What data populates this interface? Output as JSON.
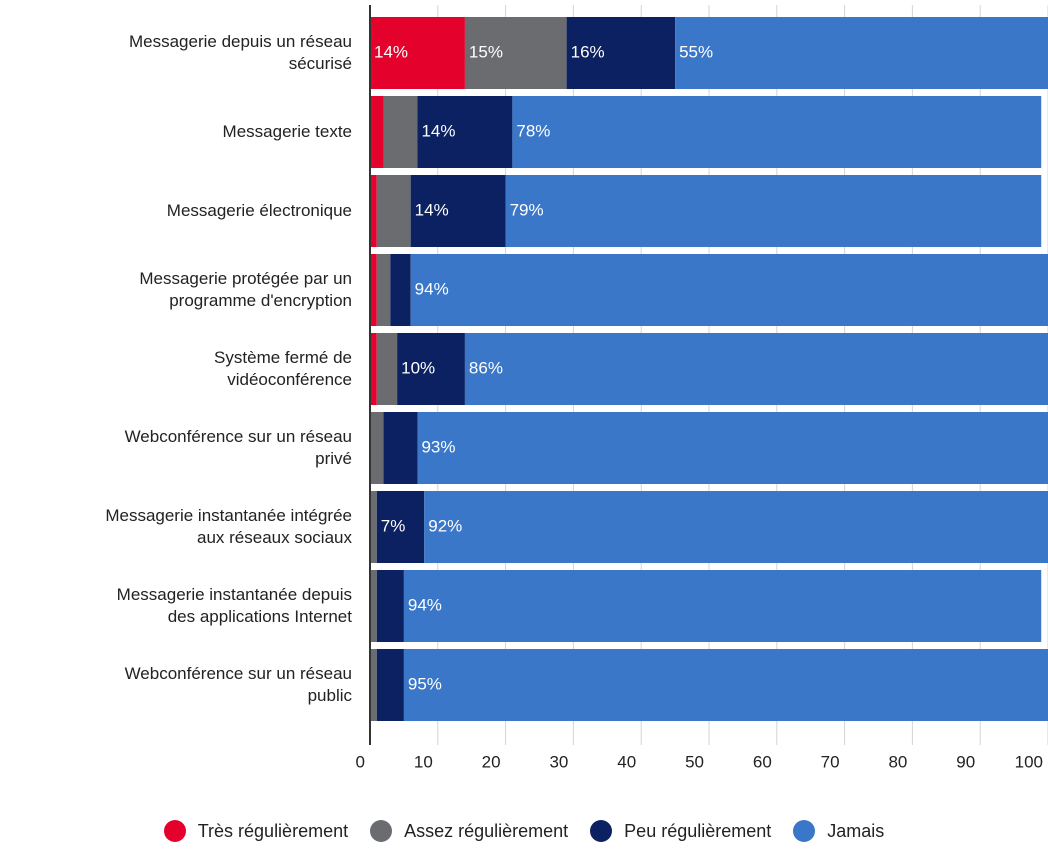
{
  "chart_data": {
    "type": "stacked_barh",
    "categories": [
      "Messagerie depuis un réseau\nsécurisé",
      "Messagerie texte",
      "Messagerie électronique",
      "Messagerie protégée par un\nprogramme d'encryption",
      "Système fermé de\nvidéoconférence",
      "Webconférence sur un réseau\nprivé",
      "Messagerie instantanée intégrée\naux réseaux sociaux",
      "Messagerie instantanée depuis\ndes applications Internet",
      "Webconférence sur un réseau\npublic"
    ],
    "series": [
      {
        "name": "Très régulièrement",
        "color": "#e4022d",
        "values": [
          14,
          2,
          1,
          1,
          1,
          0,
          0,
          0,
          0
        ],
        "value_labels": [
          "14%",
          null,
          null,
          null,
          null,
          null,
          null,
          null,
          null
        ]
      },
      {
        "name": "Assez régulièrement",
        "color": "#6b6c70",
        "values": [
          15,
          5,
          5,
          2,
          3,
          2,
          1,
          1,
          1
        ],
        "value_labels": [
          "15%",
          null,
          null,
          null,
          null,
          null,
          null,
          null,
          null
        ]
      },
      {
        "name": "Peu régulièrement",
        "color": "#0b2161",
        "values": [
          16,
          14,
          14,
          3,
          10,
          5,
          7,
          4,
          4
        ],
        "value_labels": [
          "16%",
          "14%",
          "14%",
          null,
          "10%",
          null,
          "7%",
          null,
          null
        ]
      },
      {
        "name": "Jamais",
        "color": "#3a77c8",
        "values": [
          55,
          78,
          79,
          94,
          86,
          93,
          92,
          94,
          95
        ],
        "value_labels": [
          "55%",
          "78%",
          "79%",
          "94%",
          "86%",
          "93%",
          "92%",
          "94%",
          "95%"
        ]
      }
    ],
    "xlim": [
      0,
      100
    ],
    "xticks": [
      0,
      10,
      20,
      30,
      40,
      50,
      60,
      70,
      80,
      90,
      100
    ],
    "grid": true,
    "legend": "bottom"
  }
}
